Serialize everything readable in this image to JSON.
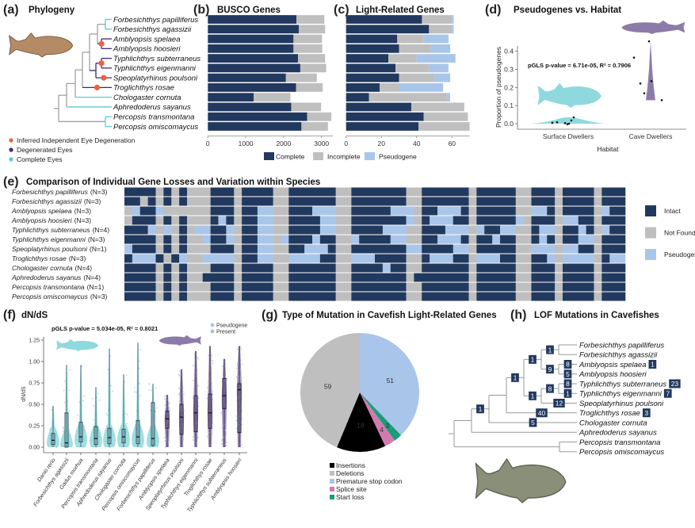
{
  "species": [
    {
      "name": "Forbesichthys papilliferus",
      "eyes": "complete",
      "n": "(N=3)"
    },
    {
      "name": "Forbesichthys agassizii",
      "eyes": "complete",
      "n": "(N=3)"
    },
    {
      "name": "Amblyopsis spelaea",
      "eyes": "degenerated",
      "n": "(N=3)"
    },
    {
      "name": "Amblyopsis hoosieri",
      "eyes": "degenerated",
      "n": "(N=3)"
    },
    {
      "name": "Typhlichthys subterraneus",
      "eyes": "degenerated",
      "n": "(N=4)"
    },
    {
      "name": "Typhlichthys eigenmanni",
      "eyes": "degenerated",
      "n": "(N=3)"
    },
    {
      "name": "Speoplatyrhinus poulsoni",
      "eyes": "degenerated",
      "n": "(N=1)"
    },
    {
      "name": "Troglichthys rosae",
      "eyes": "degenerated",
      "n": "(N=3)"
    },
    {
      "name": "Chologaster cornuta",
      "eyes": "complete",
      "n": "(N=4)"
    },
    {
      "name": "Aphredoderus sayanus",
      "eyes": "complete",
      "n": "(N=4)"
    },
    {
      "name": "Percopsis transmontana",
      "eyes": "complete",
      "n": "(N=1)"
    },
    {
      "name": "Percopsis omiscomaycus",
      "eyes": "complete",
      "n": "(N=3)"
    }
  ],
  "tree": {
    "id": "root",
    "children": [
      {
        "id": "in",
        "children": [
          {
            "id": "b",
            "children": [
              {
                "id": "c",
                "children": [
                  {
                    "id": "d",
                    "children": [
                      {
                        "id": "e",
                        "children": [
                          {
                            "id": "forb",
                            "children": [
                              "Forbesichthys papilliferus",
                              "Forbesichthys agassizii"
                            ]
                          },
                          {
                            "id": "amb",
                            "children": [
                              "Amblyopsis spelaea",
                              "Amblyopsis hoosieri"
                            ]
                          }
                        ]
                      },
                      {
                        "id": "f",
                        "children": [
                          {
                            "id": "typh",
                            "children": [
                              "Typhlichthys subterraneus",
                              "Typhlichthys eigenmanni"
                            ]
                          },
                          "Speoplatyrhinus poulsoni"
                        ]
                      }
                    ]
                  },
                  "Troglichthys rosae"
                ]
              },
              "Chologaster cornuta"
            ]
          },
          "Aphredoderus sayanus"
        ]
      },
      {
        "id": "perc",
        "children": [
          "Percopsis transmontana",
          "Percopsis omiscomaycus"
        ]
      }
    ]
  },
  "colors": {
    "complete_eyes": "#5cc9d1",
    "degenerated_eyes": "#3d2b6e",
    "eye_loss": "#f0603c",
    "intact": "#22395f",
    "not_found": "#bfbfbf",
    "pseudogene": "#a9c6ea",
    "surface": "#8fd9de",
    "cave": "#8c7ba8"
  },
  "panel_a": {
    "tag": "(a)",
    "title": "Phylogeny",
    "eye_loss_events": [
      "amb",
      "typh",
      "Speoplatyrhinus poulsoni",
      "Troglichthys rosae"
    ],
    "legend": [
      {
        "label": "Inferred Independent Eye Degeneration",
        "key": "eye_loss"
      },
      {
        "label": "Degenerated Eyes",
        "key": "degenerated_eyes"
      },
      {
        "label": "Complete Eyes",
        "key": "complete_eyes"
      }
    ]
  },
  "bar_legend": [
    "Complete",
    "Incomplete",
    "Pseudogene"
  ],
  "chart_data": [
    {
      "panel": "b",
      "tag": "(b)",
      "type": "bar",
      "orientation": "horizontal",
      "stacked": true,
      "title": "BUSCO Genes",
      "xticks": [
        0,
        1000,
        2000,
        3000
      ],
      "xlim": [
        0,
        3300
      ],
      "series": [
        {
          "name": "Complete",
          "values": [
            2340,
            2400,
            2260,
            2260,
            2380,
            2440,
            2060,
            2330,
            1210,
            2200,
            2620,
            2470
          ]
        },
        {
          "name": "Incomplete",
          "values": [
            735,
            696,
            753,
            760,
            716,
            684,
            816,
            704,
            970,
            790,
            640,
            700
          ]
        }
      ]
    },
    {
      "panel": "c",
      "tag": "(c)",
      "type": "bar",
      "orientation": "horizontal",
      "stacked": true,
      "title": "Light-Related Genes",
      "xticks": [
        0,
        20,
        40,
        60
      ],
      "xlim": [
        0,
        70
      ],
      "series": [
        {
          "name": "Complete",
          "values": [
            43,
            47,
            29,
            30,
            24,
            28,
            30,
            19,
            13,
            37,
            44,
            41
          ]
        },
        {
          "name": "Incomplete",
          "values": [
            17,
            13,
            15,
            18,
            16,
            19,
            20,
            11,
            44,
            30,
            25,
            29
          ]
        },
        {
          "name": "Pseudogene",
          "values": [
            1,
            1,
            14,
            11,
            22,
            11,
            9,
            25,
            2,
            0,
            0,
            0
          ]
        }
      ]
    },
    {
      "panel": "d",
      "tag": "(d)",
      "type": "scatter",
      "title": "Pseudogenes vs. Habitat",
      "xlabel": "Habitat",
      "ylabel": "Proportion of pseudogenes",
      "categories": [
        "Surface Dwellers",
        "Cave Dwellers"
      ],
      "yticks": [
        "0.0",
        "0.1",
        "0.2",
        "0.3",
        "0.4"
      ],
      "ylim": [
        -0.01,
        0.46
      ],
      "points": [
        {
          "group": "Surface Dwellers",
          "values": [
            0.005,
            0.008,
            0.003,
            -0.003,
            0.0,
            0.018,
            0.035
          ]
        },
        {
          "group": "Cave Dwellers",
          "values": [
            0.365,
            0.222,
            0.168,
            0.235,
            0.13,
            0.455
          ]
        }
      ],
      "annotation": "pGLS p-value = 6.71e-05, R² = 0.7906"
    },
    {
      "panel": "e",
      "tag": "(e)",
      "type": "heatmap",
      "title": "Comparison of Individual Gene Losses and Variation within Species",
      "legend": [
        {
          "label": "Intact",
          "code": "I"
        },
        {
          "label": "Not Found",
          "code": "N"
        },
        {
          "label": "Pseudogene",
          "code": "P"
        }
      ],
      "rows": [
        "IIII N I N I NNN III N IIII NN IIIIII NN IIIIIII NN IIIIII N IIIII NN III N IIII N III",
        "IINI N I N I NNN III N IIII NN IIIIII NN IIIIIII NN IIIIII N IIIII NN III N IIII N III",
        "NPII P N N N NNN III N IIPP NN IIIPPP NN IIIIIPP PN IIPPPI N IIIII NN PPI N IIII N PII",
        "NIII N I N I NNN IPI N IIPP NN IIIIPP NN IIIIIII PN IPPPII N IIIII PN III N PPII N III",
        "IIIP N P N I NPP IIP N IIPP NN IIIIPP NN IIIIPPP NN IIIPPP N PIIPP NN IPP N IIPI N PII",
        "IIII N I N I NNP IIP N IIPP NP IIIPII NN PIIIIPP NN IIPPPI N IIPII NN IPI N IIPP N III",
        "PIII N I N I NNN III N IIPP NN IIPPPI NN IIIIIII PP IIIIPP N IIIII NN PPP N PPII N III",
        "IPPP I N I P NNP PPP N IIPP NN PPPPII NN PPPIIII NN IPPPII N PPPII NN IIP N PPPP N IPP",
        "IIII N I N I NNN III N IIII NN IIIIII NN IIIIPII NN IIIIII N IIIII NN III N IIII N III",
        "IIII N I N I NNI III N IIII NN IIIIII NN IIIIIII NI IIIIII N IIIII NN III N IIII N III",
        "IIII N I N I NNN III N IIII NN IIIIII NN IIIIIII NN IIIIII N IIIII NN III N IIII N III",
        "IIII N I N I NNN III N IIII NN IIIIII NN IIIIIII NN IIIIII N IIIII NN III N IIII N III"
      ]
    },
    {
      "panel": "f",
      "tag": "(f)",
      "type": "violin",
      "title": "dN/dS",
      "ylabel": "dN/dS",
      "yticks": [
        "0.00",
        "0.25",
        "0.50",
        "0.75",
        "1.00",
        "1.25"
      ],
      "ylim": [
        0,
        1.25
      ],
      "annotation": "pGLS p-value = 5.034e-05, R² = 0.8021",
      "legend": [
        {
          "label": "Pseudogene",
          "color": "#a9c6ea"
        },
        {
          "label": "Present",
          "color": "#bdbdbd"
        }
      ],
      "categories": [
        {
          "name": "Danio rerio",
          "habitat": "surface",
          "max": 0.48,
          "median": 0.08,
          "q1": 0.03,
          "q3": 0.16
        },
        {
          "name": "Forbesichthys agassizii",
          "habitat": "surface",
          "max": 0.96,
          "median": 0.05,
          "q1": 0.0,
          "q3": 0.4
        },
        {
          "name": "Gadus morhua",
          "habitat": "surface",
          "max": 0.96,
          "median": 0.12,
          "q1": 0.06,
          "q3": 0.29
        },
        {
          "name": "Percopsis transmontana",
          "habitat": "surface",
          "max": 0.7,
          "median": 0.1,
          "q1": 0.03,
          "q3": 0.24
        },
        {
          "name": "Aphredoderus sayanus",
          "habitat": "surface",
          "max": 1.15,
          "median": 0.11,
          "q1": 0.04,
          "q3": 0.22
        },
        {
          "name": "Chologaster cornuta",
          "habitat": "surface",
          "max": 0.85,
          "median": 0.12,
          "q1": 0.05,
          "q3": 0.21
        },
        {
          "name": "Percopsis omiscomaycus",
          "habitat": "surface",
          "max": 1.22,
          "median": 0.12,
          "q1": 0.04,
          "q3": 0.31
        },
        {
          "name": "Forbesichthys papilliferus",
          "habitat": "surface",
          "max": 0.74,
          "median": 0.1,
          "q1": 0.02,
          "q3": 0.52
        },
        {
          "name": "Amblyopsis spelaea",
          "habitat": "cave",
          "max": 0.61,
          "median": 0.33,
          "q1": 0.22,
          "q3": 0.42
        },
        {
          "name": "Speoplatyrhinus poulsoni",
          "habitat": "cave",
          "max": 0.91,
          "median": 0.35,
          "q1": 0.15,
          "q3": 0.5
        },
        {
          "name": "Typhlichthys eigenmanni",
          "habitat": "cave",
          "max": 1.12,
          "median": 0.4,
          "q1": 0.18,
          "q3": 0.6
        },
        {
          "name": "Troglichthys rosae",
          "habitat": "cave",
          "max": 1.18,
          "median": 0.4,
          "q1": 0.22,
          "q3": 0.62
        },
        {
          "name": "Typhlichthys subterraneus",
          "habitat": "cave",
          "max": 1.03,
          "median": 0.6,
          "q1": 0.45,
          "q3": 0.8
        },
        {
          "name": "Amblyopsis hoosieri",
          "habitat": "cave",
          "max": 1.18,
          "median": 0.67,
          "q1": 0.17,
          "q3": 0.74
        }
      ]
    },
    {
      "panel": "g",
      "tag": "(g)",
      "type": "pie",
      "title": "Type of Mutation in Cavefish Light-Related Genes",
      "slices": [
        {
          "label": "Premature stop codon",
          "value": 51,
          "color": "#a9c6ea"
        },
        {
          "label": "Start loss",
          "value": 3,
          "color": "#1a9c7a"
        },
        {
          "label": "Splice site",
          "value": 4,
          "color": "#d37aae"
        },
        {
          "label": "Insertions",
          "value": 18,
          "color": "#000000"
        },
        {
          "label": "Deletions",
          "value": 59,
          "color": "#bfbfbf"
        }
      ],
      "legend_order": [
        "Insertions",
        "Deletions",
        "Premature stop codon",
        "Splice site",
        "Start loss"
      ]
    }
  ],
  "panel_h": {
    "tag": "(h)",
    "title": "LOF Mutations in Cavefishes",
    "branch_badges": {
      "b": "1",
      "d": "1",
      "e": "1",
      "f": "1",
      "forb": "1",
      "amb": "9",
      "typh": "8",
      "Amblyopsis spelaea": "8",
      "Amblyopsis hoosieri": "5",
      "Typhlichthys subterraneus": "8",
      "Typhlichthys eigenmanni": "1",
      "Speoplatyrhinus poulsoni": "12",
      "Troglichthys rosae": "40",
      "Chologaster cornuta": "5"
    },
    "tip_badges": {
      "Amblyopsis spelaea": "1",
      "Typhlichthys subterraneus": "23",
      "Typhlichthys eigenmanni": "7",
      "Troglichthys rosae": "3"
    }
  }
}
